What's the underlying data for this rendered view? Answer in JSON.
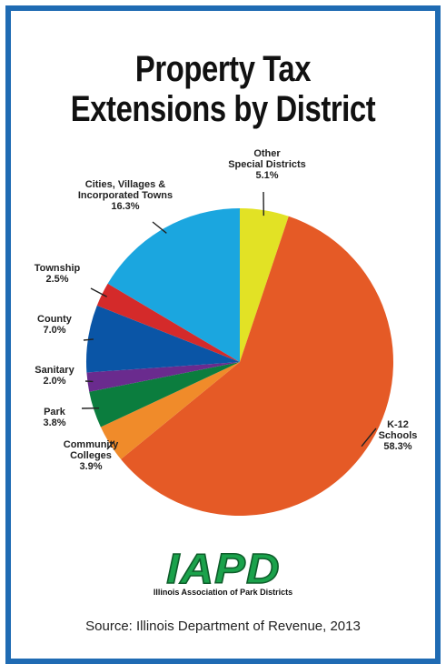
{
  "poster": {
    "title_line1": "Property Tax",
    "title_line2": "Extensions by District",
    "logo": "IAPD",
    "logo_subtitle": "Illinois Association of Park Districts",
    "source": "Source: Illinois Department of Revenue, 2013",
    "border_color": "#1f6bb3"
  },
  "chart_data": {
    "type": "pie",
    "slices": [
      {
        "lines": [
          "Other",
          "Special Districts",
          "5.1%"
        ],
        "value": 5.1,
        "color": "#e2e225"
      },
      {
        "lines": [
          "K-12",
          "Schools",
          "58.3%"
        ],
        "value": 58.3,
        "color": "#e55a26"
      },
      {
        "lines": [
          "Community",
          "Colleges",
          "3.9%"
        ],
        "value": 3.9,
        "color": "#f08b2a"
      },
      {
        "lines": [
          "Park",
          "3.8%"
        ],
        "value": 3.8,
        "color": "#0b7d3e"
      },
      {
        "lines": [
          "Sanitary",
          "2.0%"
        ],
        "value": 2.0,
        "color": "#6a2b8e"
      },
      {
        "lines": [
          "County",
          "7.0%"
        ],
        "value": 7.0,
        "color": "#0a55a6"
      },
      {
        "lines": [
          "Township",
          "2.5%"
        ],
        "value": 2.5,
        "color": "#d42a2a"
      },
      {
        "lines": [
          "Cities, Villages &",
          "Incorporated Towns",
          "16.3%"
        ],
        "value": 16.3,
        "color": "#1ba6df"
      }
    ]
  }
}
